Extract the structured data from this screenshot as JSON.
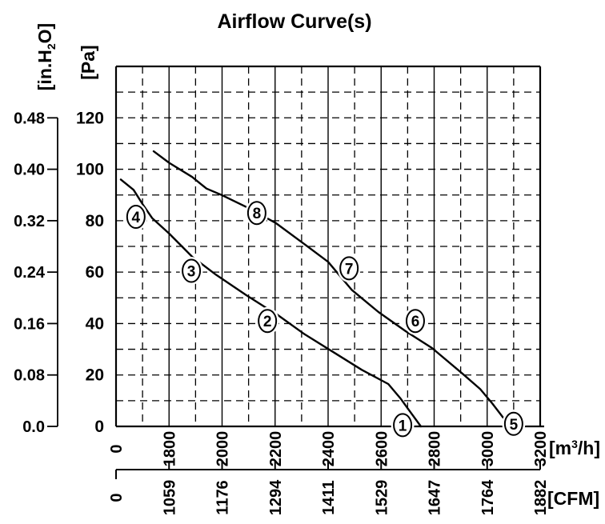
{
  "title": "Airflow Curve(s)",
  "colors": {
    "ink": "#000000",
    "background": "#ffffff"
  },
  "axes": {
    "pressure_pa": {
      "label": "[Pa]",
      "ticks": [
        "0",
        "20",
        "40",
        "60",
        "80",
        "100",
        "120"
      ]
    },
    "pressure_inh2o": {
      "label_pre": "[in.H",
      "label_sub": "2",
      "label_post": "O]",
      "ticks": [
        "0.0",
        "0.08",
        "0.16",
        "0.24",
        "0.32",
        "0.40",
        "0.48"
      ]
    },
    "flow_m3h": {
      "label_pre": "[m",
      "label_sup": "3",
      "label_post": "/h]",
      "ticks": [
        "0",
        "1800",
        "2000",
        "2200",
        "2400",
        "2600",
        "2800",
        "3000",
        "3200"
      ]
    },
    "flow_cfm": {
      "label": "[CFM]",
      "ticks": [
        "0",
        "1059",
        "1176",
        "1294",
        "1411",
        "1529",
        "1647",
        "1764",
        "1882"
      ]
    }
  },
  "chart_data": {
    "type": "line",
    "title": "Airflow Curve(s)",
    "xlabel_primary": "m³/h",
    "xlabel_secondary": "CFM",
    "ylabel_primary": "Pa",
    "ylabel_secondary": "in.H₂O",
    "x_ticks_m3h": [
      0,
      1800,
      2000,
      2200,
      2400,
      2600,
      2800,
      3000,
      3200
    ],
    "x_ticks_cfm": [
      0,
      1059,
      1176,
      1294,
      1411,
      1529,
      1647,
      1764,
      1882
    ],
    "y_ticks_pa": [
      0,
      20,
      40,
      60,
      80,
      100,
      120
    ],
    "y_ticks_inh2o": [
      0.0,
      0.08,
      0.16,
      0.24,
      0.32,
      0.4,
      0.48
    ],
    "ylim_pa": [
      0,
      140
    ],
    "x_axis_break_before": 1800,
    "grid": "dashed horizontals every 10 Pa; solid major verticals every 200 m3/h with dashed minors",
    "legend_position": "none",
    "series": [
      {
        "name": "curve-1-2-3-4",
        "points_m3h_pa": [
          [
            1618,
            96
          ],
          [
            1666,
            92
          ],
          [
            1703,
            86
          ],
          [
            1736,
            81
          ],
          [
            1800,
            75
          ],
          [
            1887,
            66
          ],
          [
            1977,
            59
          ],
          [
            2092,
            51
          ],
          [
            2168,
            46
          ],
          [
            2201,
            44
          ],
          [
            2309,
            36
          ],
          [
            2418,
            29
          ],
          [
            2527,
            22
          ],
          [
            2627,
            16.5
          ],
          [
            2672,
            11
          ],
          [
            2711,
            5.5
          ],
          [
            2750,
            0
          ]
        ],
        "markers": [
          {
            "label": "4",
            "m3h": 1675,
            "pa": 81.5
          },
          {
            "label": "3",
            "m3h": 1884,
            "pa": 60.5
          },
          {
            "label": "2",
            "m3h": 2171,
            "pa": 41
          },
          {
            "label": "1",
            "m3h": 2681,
            "pa": 0.5
          }
        ]
      },
      {
        "name": "curve-5-6-7-8",
        "points_m3h_pa": [
          [
            1742,
            107
          ],
          [
            1800,
            102.5
          ],
          [
            1887,
            97
          ],
          [
            1941,
            92.5
          ],
          [
            1998,
            90
          ],
          [
            2098,
            85
          ],
          [
            2204,
            79
          ],
          [
            2309,
            71
          ],
          [
            2400,
            64
          ],
          [
            2490,
            53
          ],
          [
            2590,
            44.5
          ],
          [
            2693,
            37
          ],
          [
            2792,
            30.5
          ],
          [
            2907,
            20.5
          ],
          [
            2974,
            14.5
          ],
          [
            3019,
            9
          ],
          [
            3082,
            0.5
          ]
        ],
        "markers": [
          {
            "label": "8",
            "m3h": 2131,
            "pa": 83
          },
          {
            "label": "7",
            "m3h": 2479,
            "pa": 61.5
          },
          {
            "label": "6",
            "m3h": 2729,
            "pa": 41
          },
          {
            "label": "5",
            "m3h": 3100,
            "pa": 1
          }
        ]
      }
    ]
  }
}
